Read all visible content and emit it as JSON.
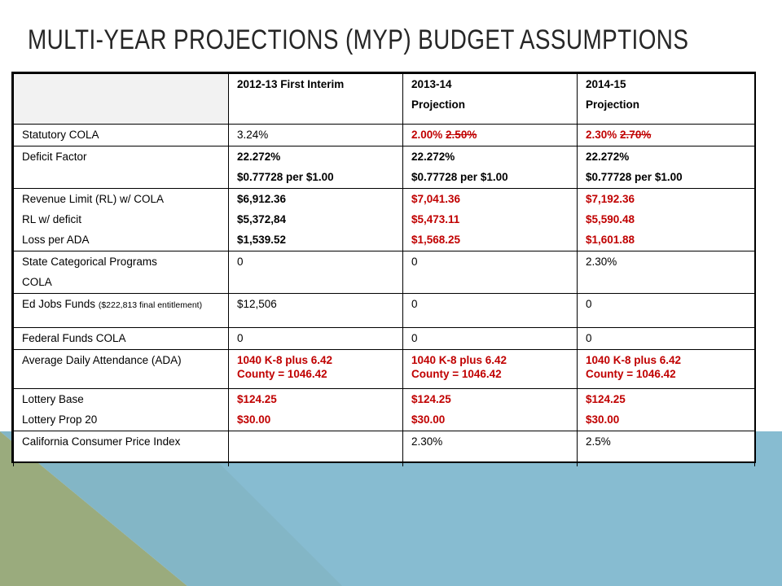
{
  "title": "MULTI-YEAR PROJECTIONS (MYP) BUDGET ASSUMPTIONS",
  "colors": {
    "teal": "#87bcd1",
    "olive": "#9aab7d",
    "red_text": "#c00000"
  },
  "header": {
    "col1": "2012-13 First Interim",
    "col2_line1": "2013-14",
    "col2_line2": "Projection",
    "col3_line1": "2014-15",
    "col3_line2": "Projection"
  },
  "rows": {
    "cola": {
      "label": "Statutory COLA",
      "c1": "3.24%",
      "c2_new": "2.00%",
      "c2_old": "2.50%",
      "c3_new": "2.30%",
      "c3_old": "2.70%"
    },
    "deficit": {
      "label": "Deficit Factor",
      "c1_a": "22.272%",
      "c1_b": "$0.77728 per $1.00",
      "c2_a": "22.272%",
      "c2_b": "$0.77728 per $1.00",
      "c3_a": "22.272%",
      "c3_b": "$0.77728 per $1.00"
    },
    "revenue": {
      "label_a": "Revenue Limit (RL) w/ COLA",
      "label_b": "RL w/ deficit",
      "label_c": "Loss per ADA",
      "c1_a": "$6,912.36",
      "c1_b": "$5,372,84",
      "c1_c": "$1,539.52",
      "c2_a": "$7,041.36",
      "c2_b": "$5,473.11",
      "c2_c": "$1,568.25",
      "c3_a": "$7,192.36",
      "c3_b": "$5,590.48",
      "c3_c": "$1,601.88"
    },
    "state_cat": {
      "label_a": "State Categorical Programs",
      "label_b": "COLA",
      "c1": "0",
      "c2": "0",
      "c3": "2.30%"
    },
    "ed_jobs": {
      "label_a": "Ed Jobs Funds",
      "label_small": "($222,813 final entitlement)",
      "c1": "$12,506",
      "c2": "0",
      "c3": "0"
    },
    "federal": {
      "label": "Federal Funds COLA",
      "c1": "0",
      "c2": "0",
      "c3": "0"
    },
    "ada": {
      "label": "Average Daily Attendance (ADA)",
      "c1_a": "1040 K-8 plus 6.42",
      "c1_b": "County = 1046.42",
      "c2_a": "1040 K-8 plus 6.42",
      "c2_b": "County = 1046.42",
      "c3_a": "1040 K-8 plus 6.42",
      "c3_b": "County = 1046.42"
    },
    "lottery": {
      "label_a": "Lottery Base",
      "label_b": "Lottery Prop 20",
      "c1_a": "$124.25",
      "c1_b": "$30.00",
      "c2_a": "$124.25",
      "c2_b": "$30.00",
      "c3_a": "$124.25",
      "c3_b": "$30.00"
    },
    "cpi": {
      "label": "California Consumer Price Index",
      "c1": "",
      "c2": "2.30%",
      "c3": "2.5%"
    }
  }
}
